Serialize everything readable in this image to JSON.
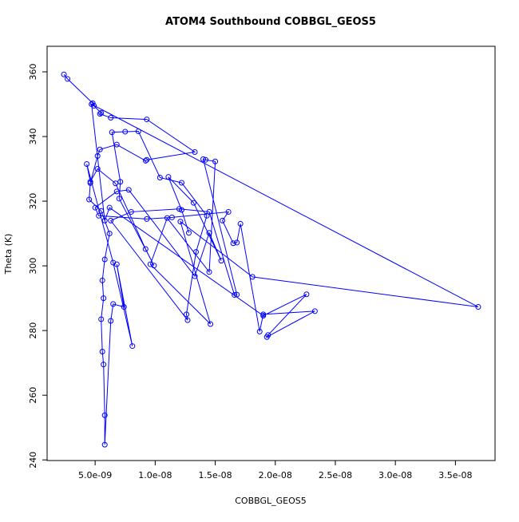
{
  "chart_data": {
    "type": "line",
    "title": "ATOM4 Southbound COBBGL_GEOS5",
    "x_label": "COBBGL_GEOS5",
    "y_label": "Theta (K)",
    "color": "#0000ff",
    "markers": true,
    "x": [
      2.4e-09,
      2.7e-09,
      4.8e-09,
      4.9e-09,
      5.5e-09,
      5.4e-09,
      6.3e-09,
      9.3e-09,
      1.33e-08,
      9.3e-09,
      9.2e-09,
      6.8e-09,
      5.4e-09,
      5.2e-09,
      4.6e-09,
      4.5e-09,
      5.5e-09,
      6.2e-09,
      5.8e-09,
      5.6e-09,
      5.7e-09,
      5.5e-09,
      5.6e-09,
      5.7e-09,
      5.8e-09,
      5.8e-09,
      6.3e-09,
      6.5e-09,
      7.4e-09,
      6.8e-09,
      8.1e-09,
      6.5e-09,
      4.3e-09,
      4.6e-09,
      5.2e-09,
      6.7e-09,
      9.2e-09,
      9.9e-09,
      7e-09,
      7.1e-09,
      6.4e-09,
      7.5e-09,
      8.6e-09,
      1.04e-08,
      1.22e-08,
      1.43e-08,
      1.34e-08,
      1.26e-08,
      1.27e-08,
      6.3e-09,
      8e-09,
      1.2e-08,
      1.45e-08,
      1.66e-08,
      1.68e-08,
      1.4e-08,
      1.42e-08,
      1.5e-08,
      1.45e-08,
      1.1e-08,
      9.6e-09,
      1.46e-08,
      1.21e-08,
      1.81e-08,
      3.69e-08,
      4.7e-09,
      5.8e-09,
      6.2e-09,
      1.9e-08,
      2.26e-08,
      1.94e-08,
      1.93e-08,
      2.33e-08,
      1.9e-08,
      1.87e-08,
      1.71e-08,
      1.68e-08,
      1.65e-08,
      1.56e-08,
      1.61e-08,
      1.14e-08,
      9.3e-09,
      5.3e-09,
      5e-09,
      6.8e-09,
      7.8e-09,
      1.33e-08,
      1.45e-08,
      1.55e-08,
      1.32e-08,
      1.11e-08,
      1.22e-08,
      1.28e-08
    ],
    "values": [
      359.2,
      357.8,
      350.3,
      349.5,
      347.3,
      347.0,
      345.8,
      345.3,
      335.2,
      332.8,
      332.5,
      337.5,
      336.0,
      334.0,
      325.6,
      320.5,
      317.0,
      310.0,
      302.0,
      295.5,
      290.0,
      283.5,
      273.5,
      269.5,
      253.8,
      244.7,
      283.0,
      288.2,
      287.3,
      300.5,
      275.2,
      301.0,
      331.5,
      326.0,
      330.0,
      325.5,
      305.2,
      300.1,
      320.8,
      326.0,
      341.3,
      341.5,
      341.6,
      327.3,
      325.7,
      315.5,
      304.3,
      285.0,
      283.2,
      314.0,
      316.7,
      317.6,
      316.7,
      291.0,
      291.1,
      333.0,
      332.8,
      332.3,
      298.1,
      314.8,
      300.5,
      282.0,
      313.7,
      296.6,
      287.3,
      350.0,
      314.0,
      318.0,
      284.6,
      291.2,
      278.6,
      278.0,
      286.0,
      285.0,
      279.7,
      313.0,
      307.2,
      307.0,
      314.0,
      316.7,
      315.0,
      314.5,
      315.5,
      318.0,
      323.0,
      323.5,
      296.8,
      310.2,
      301.6,
      319.5,
      327.5,
      317.3,
      310.2
    ],
    "xlim": [
      1e-09,
      3.83e-08
    ],
    "ylim": [
      239.8,
      367.9
    ],
    "xticks": [
      {
        "value": 5e-09,
        "label": "5.0e-09"
      },
      {
        "value": 1e-08,
        "label": "1.0e-08"
      },
      {
        "value": 1.5e-08,
        "label": "1.5e-08"
      },
      {
        "value": 2e-08,
        "label": "2.0e-08"
      },
      {
        "value": 2.5e-08,
        "label": "2.5e-08"
      },
      {
        "value": 3e-08,
        "label": "3.0e-08"
      },
      {
        "value": 3.5e-08,
        "label": "3.5e-08"
      }
    ],
    "yticks": [
      240,
      260,
      280,
      300,
      320,
      340,
      360
    ]
  }
}
